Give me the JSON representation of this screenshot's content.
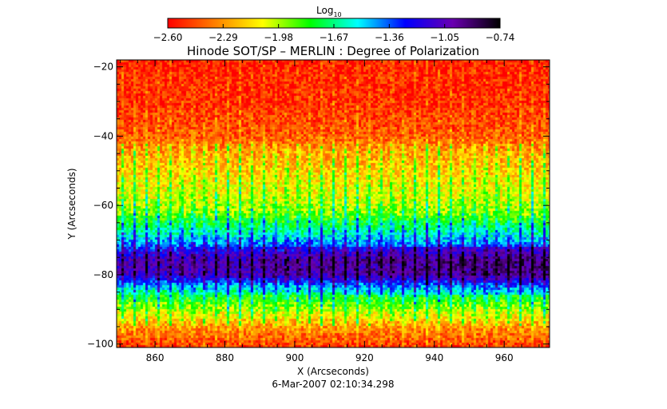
{
  "chart_data": {
    "type": "heatmap",
    "title": "Hinode SOT/SP – MERLIN : Degree of Polarization",
    "xlabel": "X (Arcseconds)",
    "ylabel": "Y (Arcseconds)",
    "date_label": "6-Mar-2007 02:10:34.298",
    "xlim": [
      849,
      973
    ],
    "ylim": [
      -101,
      -18
    ],
    "x_ticks": [
      860,
      880,
      900,
      920,
      940,
      960
    ],
    "y_ticks": [
      -20,
      -40,
      -60,
      -80,
      -100
    ],
    "x_tick_labels": [
      "860",
      "880",
      "900",
      "920",
      "940",
      "960"
    ],
    "y_tick_labels": [
      "−20",
      "−40",
      "−60",
      "−80",
      "−100"
    ],
    "colorbar": {
      "title": "Log",
      "subscript": "10",
      "range": [
        -2.6,
        -0.74
      ],
      "ticks": [
        -2.6,
        -2.29,
        -1.98,
        -1.67,
        -1.36,
        -1.05,
        -0.74
      ],
      "tick_labels": [
        "−2.60",
        "−2.29",
        "−1.98",
        "−1.67",
        "−1.36",
        "−1.05",
        "−0.74"
      ],
      "colors": [
        "#ff0000",
        "#ff8000",
        "#ffff00",
        "#00ff00",
        "#00ffff",
        "#0000ff",
        "#6a00b0",
        "#000000"
      ]
    },
    "profile": {
      "y": [
        -18,
        -30,
        -40,
        -44,
        -50,
        -58,
        -62,
        -66,
        -70,
        -74,
        -76,
        -80,
        -83,
        -86,
        -90,
        -95,
        -101
      ],
      "log_value": [
        -2.55,
        -2.52,
        -2.42,
        -2.3,
        -2.18,
        -2.05,
        -1.95,
        -1.72,
        -1.5,
        -1.2,
        -1.08,
        -1.12,
        -1.5,
        -1.78,
        -2.0,
        -2.3,
        -2.5
      ]
    }
  }
}
